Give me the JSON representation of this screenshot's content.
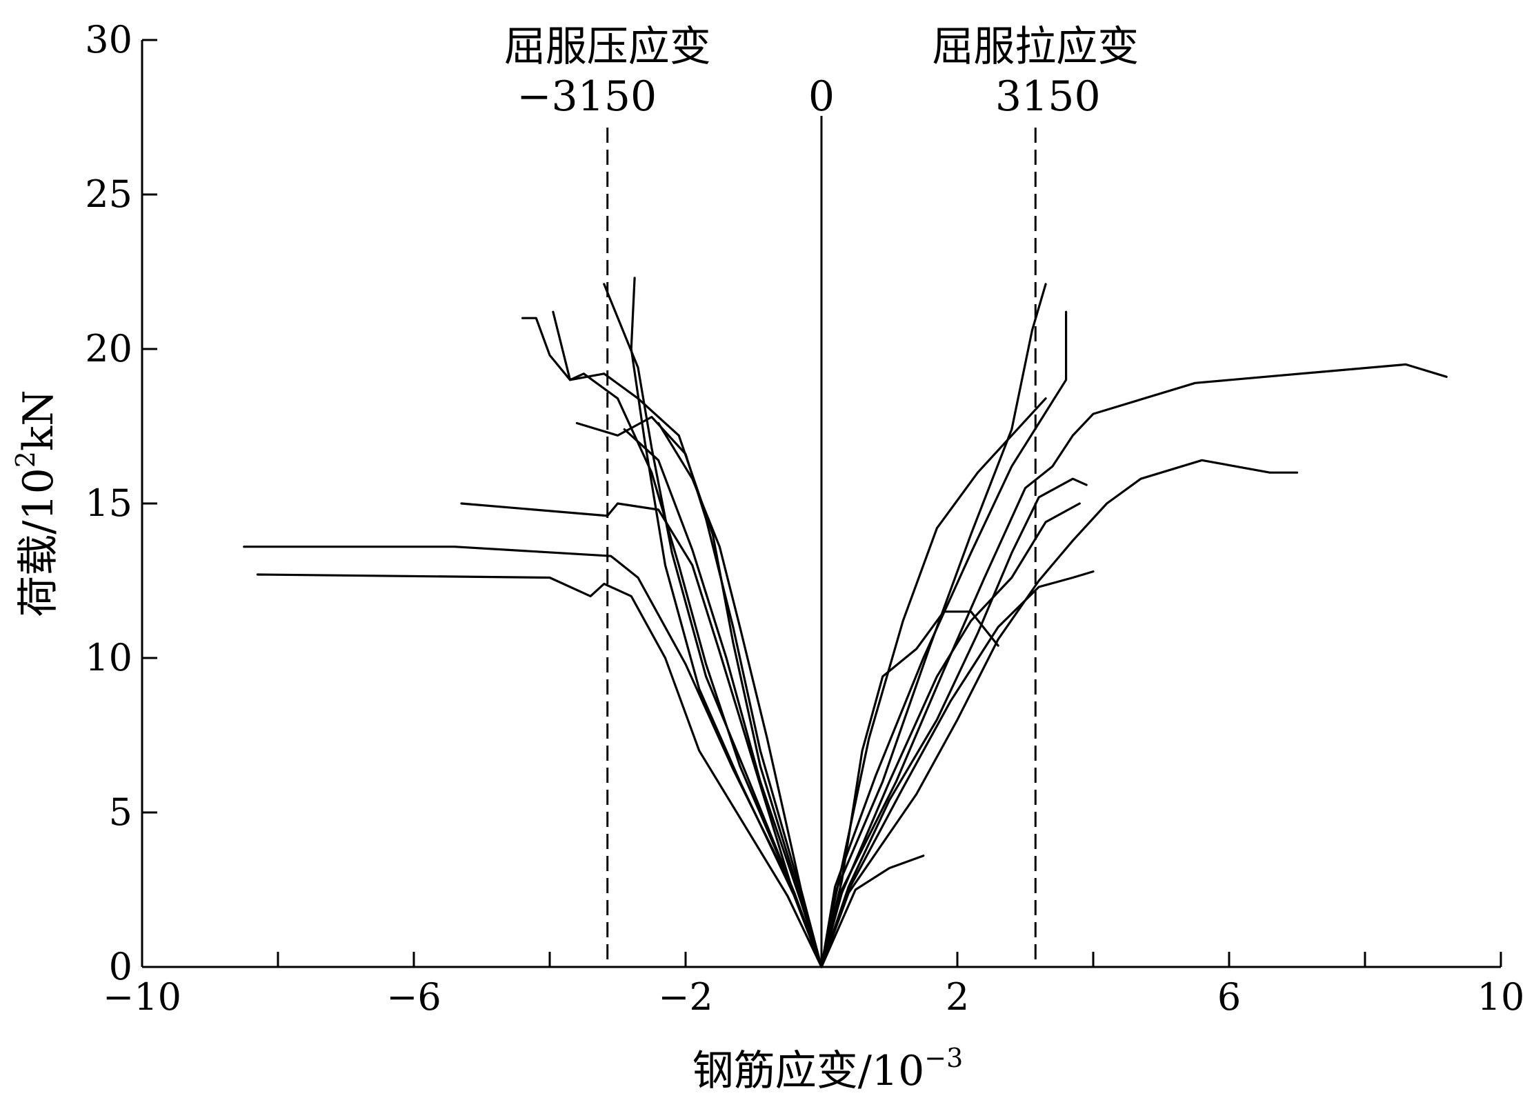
{
  "chart_data": {
    "type": "line",
    "xlabel_main": "钢筋应变/10",
    "xlabel_exp": "−3",
    "ylabel_main": "荷载/10",
    "ylabel_exp": "2",
    "ylabel_unit": "kN",
    "xlim": [
      -10,
      10
    ],
    "ylim": [
      0,
      30
    ],
    "x_ticks": [
      {
        "value": -10,
        "label": "−10"
      },
      {
        "value": -6,
        "label": "−6"
      },
      {
        "value": -2,
        "label": "−2"
      },
      {
        "value": 2,
        "label": "2"
      },
      {
        "value": 6,
        "label": "6"
      },
      {
        "value": 10,
        "label": "10"
      }
    ],
    "x_minor_ticks": [
      -8,
      -4,
      0,
      4,
      8
    ],
    "y_ticks": [
      {
        "value": 0,
        "label": "0"
      },
      {
        "value": 5,
        "label": "5"
      },
      {
        "value": 10,
        "label": "10"
      },
      {
        "value": 15,
        "label": "15"
      },
      {
        "value": 20,
        "label": "20"
      },
      {
        "value": 25,
        "label": "25"
      },
      {
        "value": 30,
        "label": "30"
      }
    ],
    "reference_lines": [
      {
        "x": -3.15,
        "style": "dashed",
        "label_top": "屈服压应变",
        "label_value": "−3150"
      },
      {
        "x": 0,
        "style": "solid",
        "label_value": "0"
      },
      {
        "x": 3.15,
        "style": "dashed",
        "label_top": "屈服拉应变",
        "label_value": "3150"
      }
    ],
    "series": [
      {
        "points": [
          [
            0,
            0
          ],
          [
            -0.4,
            2.3
          ],
          [
            -1.2,
            6
          ],
          [
            -1.8,
            9
          ],
          [
            -2.3,
            13
          ],
          [
            -2.6,
            17
          ],
          [
            -2.8,
            20
          ],
          [
            -2.75,
            22.3
          ]
        ]
      },
      {
        "points": [
          [
            0,
            0
          ],
          [
            -0.4,
            2.4
          ],
          [
            -1.1,
            6.2
          ],
          [
            -1.7,
            9.4
          ],
          [
            -2.2,
            13.4
          ],
          [
            -2.5,
            16.8
          ],
          [
            -2.7,
            19.4
          ],
          [
            -3.2,
            22.1
          ]
        ]
      },
      {
        "points": [
          [
            0,
            0
          ],
          [
            -0.3,
            2.2
          ],
          [
            -0.9,
            6.5
          ],
          [
            -1.3,
            10.5
          ],
          [
            -1.6,
            14
          ],
          [
            -2.1,
            17.2
          ],
          [
            -2.7,
            18.4
          ],
          [
            -3.2,
            19.2
          ],
          [
            -3.7,
            19
          ],
          [
            -4.0,
            19.8
          ],
          [
            -4.2,
            21
          ],
          [
            -4.4,
            21
          ]
        ]
      },
      {
        "points": [
          [
            0,
            0
          ],
          [
            -0.4,
            2.4
          ],
          [
            -1.2,
            6.5
          ],
          [
            -1.7,
            9.8
          ],
          [
            -2.1,
            13
          ],
          [
            -2.5,
            16
          ],
          [
            -3.0,
            18.4
          ],
          [
            -3.5,
            19.2
          ],
          [
            -3.7,
            19
          ],
          [
            -3.95,
            21.2
          ]
        ]
      },
      {
        "points": [
          [
            0,
            0
          ],
          [
            -0.3,
            2.4
          ],
          [
            -0.9,
            7
          ],
          [
            -1.3,
            11
          ],
          [
            -1.7,
            14.5
          ],
          [
            -2.0,
            16.6
          ],
          [
            -2.5,
            17.8
          ],
          [
            -3.0,
            17.2
          ],
          [
            -3.6,
            17.6
          ]
        ]
      },
      {
        "points": [
          [
            0,
            0
          ],
          [
            -0.4,
            2.3
          ],
          [
            -1.0,
            6.6
          ],
          [
            -1.5,
            10.2
          ],
          [
            -1.9,
            13
          ],
          [
            -2.4,
            14.8
          ],
          [
            -3.0,
            15
          ],
          [
            -3.15,
            14.6
          ],
          [
            -5.3,
            15
          ]
        ]
      },
      {
        "points": [
          [
            0,
            0
          ],
          [
            -0.4,
            2.4
          ],
          [
            -1.3,
            6.4
          ],
          [
            -2.0,
            9.8
          ],
          [
            -2.7,
            12.6
          ],
          [
            -3.1,
            13.3
          ],
          [
            -5.4,
            13.6
          ],
          [
            -8.5,
            13.6
          ]
        ]
      },
      {
        "points": [
          [
            0,
            0
          ],
          [
            -0.5,
            2.3
          ],
          [
            -1.8,
            7
          ],
          [
            -2.3,
            10
          ],
          [
            -2.8,
            12
          ],
          [
            -3.2,
            12.4
          ],
          [
            -3.4,
            12
          ],
          [
            -4.0,
            12.6
          ],
          [
            -8.3,
            12.7
          ]
        ]
      },
      {
        "points": [
          [
            0,
            0
          ],
          [
            -0.3,
            2.5
          ],
          [
            -0.8,
            7.4
          ],
          [
            -1.2,
            11
          ],
          [
            -1.5,
            13.6
          ],
          [
            -1.9,
            15.8
          ],
          [
            -2.4,
            17.6
          ]
        ]
      },
      {
        "points": [
          [
            0,
            0
          ],
          [
            -0.3,
            2.1
          ],
          [
            -0.9,
            6
          ],
          [
            -1.4,
            10
          ],
          [
            -1.9,
            13.5
          ],
          [
            -2.4,
            16.4
          ],
          [
            -2.9,
            17.4
          ]
        ]
      },
      {
        "points": [
          [
            0,
            0
          ],
          [
            0.2,
            2.4
          ],
          [
            0.9,
            6
          ],
          [
            1.6,
            10.4
          ],
          [
            2.2,
            14
          ],
          [
            2.8,
            17.4
          ],
          [
            3.1,
            20.6
          ],
          [
            3.3,
            22.1
          ]
        ]
      },
      {
        "points": [
          [
            0,
            0
          ],
          [
            0.2,
            2.6
          ],
          [
            0.8,
            6.2
          ],
          [
            1.5,
            10
          ],
          [
            2.2,
            13.4
          ],
          [
            2.8,
            16.2
          ],
          [
            3.2,
            17.6
          ],
          [
            3.6,
            19
          ],
          [
            3.6,
            21.2
          ]
        ]
      },
      {
        "points": [
          [
            0,
            0
          ],
          [
            0.3,
            2.5
          ],
          [
            1.1,
            6
          ],
          [
            1.8,
            9.6
          ],
          [
            2.4,
            12.6
          ],
          [
            3.0,
            15.5
          ],
          [
            3.4,
            16.2
          ],
          [
            3.7,
            17.2
          ],
          [
            4.0,
            17.9
          ],
          [
            5.5,
            18.9
          ],
          [
            8.6,
            19.5
          ],
          [
            9.2,
            19.1
          ]
        ]
      },
      {
        "points": [
          [
            0,
            0
          ],
          [
            0.4,
            2.4
          ],
          [
            1.4,
            5.6
          ],
          [
            2.0,
            8
          ],
          [
            2.6,
            10.6
          ],
          [
            3.2,
            12.5
          ],
          [
            3.7,
            13.8
          ],
          [
            4.2,
            15
          ],
          [
            4.7,
            15.8
          ],
          [
            5.6,
            16.4
          ],
          [
            6.6,
            16
          ],
          [
            7.0,
            16
          ]
        ]
      },
      {
        "points": [
          [
            0,
            0
          ],
          [
            0.4,
            2.5
          ],
          [
            1.2,
            5.8
          ],
          [
            1.9,
            8.6
          ],
          [
            2.6,
            11
          ],
          [
            3.2,
            12.3
          ],
          [
            3.7,
            12.6
          ],
          [
            4.0,
            12.8
          ]
        ]
      },
      {
        "points": [
          [
            0,
            0
          ],
          [
            0.5,
            2.5
          ],
          [
            1.0,
            3.2
          ],
          [
            1.5,
            3.6
          ]
        ]
      },
      {
        "points": [
          [
            0,
            0
          ],
          [
            0.3,
            2.8
          ],
          [
            0.6,
            7
          ],
          [
            0.9,
            9.4
          ],
          [
            1.4,
            10.3
          ],
          [
            1.8,
            11.5
          ],
          [
            2.2,
            11.5
          ],
          [
            2.6,
            10.4
          ]
        ]
      },
      {
        "points": [
          [
            0,
            0
          ],
          [
            0.4,
            2.6
          ],
          [
            1.0,
            5.4
          ],
          [
            1.7,
            8
          ],
          [
            2.3,
            10.8
          ],
          [
            2.8,
            13.4
          ],
          [
            3.2,
            15.2
          ],
          [
            3.7,
            15.8
          ],
          [
            3.9,
            15.6
          ]
        ]
      },
      {
        "points": [
          [
            0,
            0
          ],
          [
            0.3,
            2.4
          ],
          [
            1.0,
            6
          ],
          [
            1.7,
            9.4
          ],
          [
            2.2,
            11.2
          ],
          [
            2.8,
            12.6
          ],
          [
            3.3,
            14.4
          ],
          [
            3.8,
            15
          ]
        ]
      },
      {
        "points": [
          [
            0,
            0
          ],
          [
            0.2,
            2.2
          ],
          [
            0.7,
            7.4
          ],
          [
            1.2,
            11.2
          ],
          [
            1.7,
            14.2
          ],
          [
            2.3,
            16
          ],
          [
            2.8,
            17.2
          ],
          [
            3.3,
            18.4
          ]
        ]
      }
    ]
  }
}
